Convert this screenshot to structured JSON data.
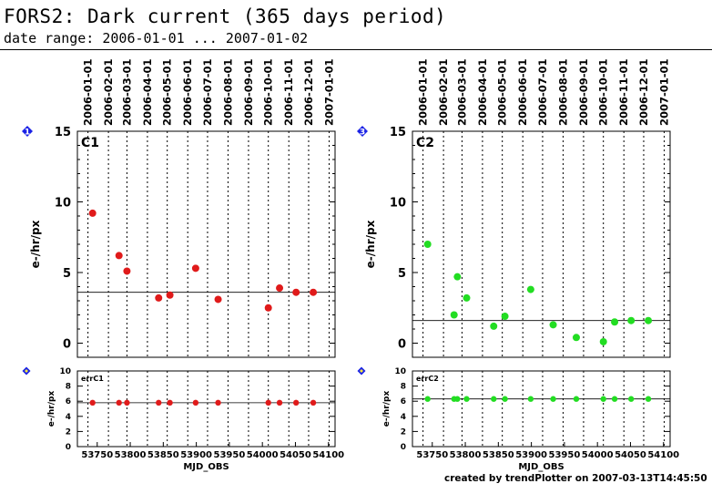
{
  "header": {
    "title": "FORS2: Dark current (365 days period)",
    "subtitle": "date range: 2006-01-01 ... 2007-01-02"
  },
  "footer": {
    "credit": "created by trendPlotter on 2007-03-13T14:45:50"
  },
  "colors": {
    "marker_badge": "#1a22e6",
    "series1": "#e01a1a",
    "series2": "#22dd22",
    "grid": "#000000"
  },
  "date_ticks": [
    "2006-01-01",
    "2006-02-01",
    "2006-03-01",
    "2006-04-01",
    "2006-05-01",
    "2006-06-01",
    "2006-07-01",
    "2006-08-01",
    "2006-09-01",
    "2006-10-01",
    "2006-11-01",
    "2006-12-01",
    "2007-01-01"
  ],
  "chart_data": [
    {
      "type": "scatter",
      "panel_badge": "1",
      "label": "C1",
      "ylabel": "e-/hr/px",
      "xlim": [
        53720,
        54110
      ],
      "ylim": [
        -1,
        15
      ],
      "yticks": [
        0,
        5,
        10,
        15
      ],
      "reference_line": 3.6,
      "x": [
        53743,
        53783,
        53795,
        53843,
        53860,
        53899,
        53933,
        54009,
        54026,
        54051,
        54077
      ],
      "y": [
        9.2,
        6.2,
        5.1,
        3.2,
        3.4,
        5.3,
        3.1,
        2.5,
        3.9,
        3.6,
        3.6
      ]
    },
    {
      "type": "scatter",
      "panel_badge": "3",
      "label": "C2",
      "ylabel": "e-/hr/px",
      "xlim": [
        53720,
        54110
      ],
      "ylim": [
        -1,
        15
      ],
      "yticks": [
        0,
        5,
        10,
        15
      ],
      "reference_line": 1.6,
      "x": [
        53743,
        53783,
        53788,
        53802,
        53843,
        53860,
        53899,
        53933,
        53968,
        54009,
        54026,
        54051,
        54077
      ],
      "y": [
        7.0,
        2.0,
        4.7,
        3.2,
        1.2,
        1.9,
        3.8,
        1.3,
        0.4,
        0.1,
        1.5,
        1.6,
        1.6
      ]
    },
    {
      "type": "scatter",
      "panel_badge": "",
      "label": "errC1",
      "ylabel": "e-/hr/px",
      "xlabel": "MJD_OBS",
      "xlim": [
        53720,
        54110
      ],
      "ylim": [
        0,
        10
      ],
      "yticks": [
        0,
        2,
        4,
        6,
        8,
        10
      ],
      "xticks": [
        53750,
        53800,
        53850,
        53900,
        53950,
        54000,
        54050,
        54100
      ],
      "reference_line": 5.8,
      "x": [
        53743,
        53783,
        53795,
        53843,
        53860,
        53899,
        53933,
        54009,
        54026,
        54051,
        54077
      ],
      "y": [
        5.8,
        5.8,
        5.8,
        5.8,
        5.8,
        5.8,
        5.8,
        5.8,
        5.8,
        5.8,
        5.8
      ]
    },
    {
      "type": "scatter",
      "panel_badge": "",
      "label": "errC2",
      "ylabel": "e-/hr/px",
      "xlabel": "MJD_OBS",
      "xlim": [
        53720,
        54110
      ],
      "ylim": [
        0,
        10
      ],
      "yticks": [
        0,
        2,
        4,
        6,
        8,
        10
      ],
      "xticks": [
        53750,
        53800,
        53850,
        53900,
        53950,
        54000,
        54050,
        54100
      ],
      "reference_line": 6.3,
      "x": [
        53743,
        53783,
        53788,
        53802,
        53843,
        53860,
        53899,
        53933,
        53968,
        54009,
        54026,
        54051,
        54077
      ],
      "y": [
        6.3,
        6.3,
        6.3,
        6.3,
        6.3,
        6.3,
        6.3,
        6.3,
        6.3,
        6.3,
        6.3,
        6.3,
        6.3
      ]
    }
  ]
}
